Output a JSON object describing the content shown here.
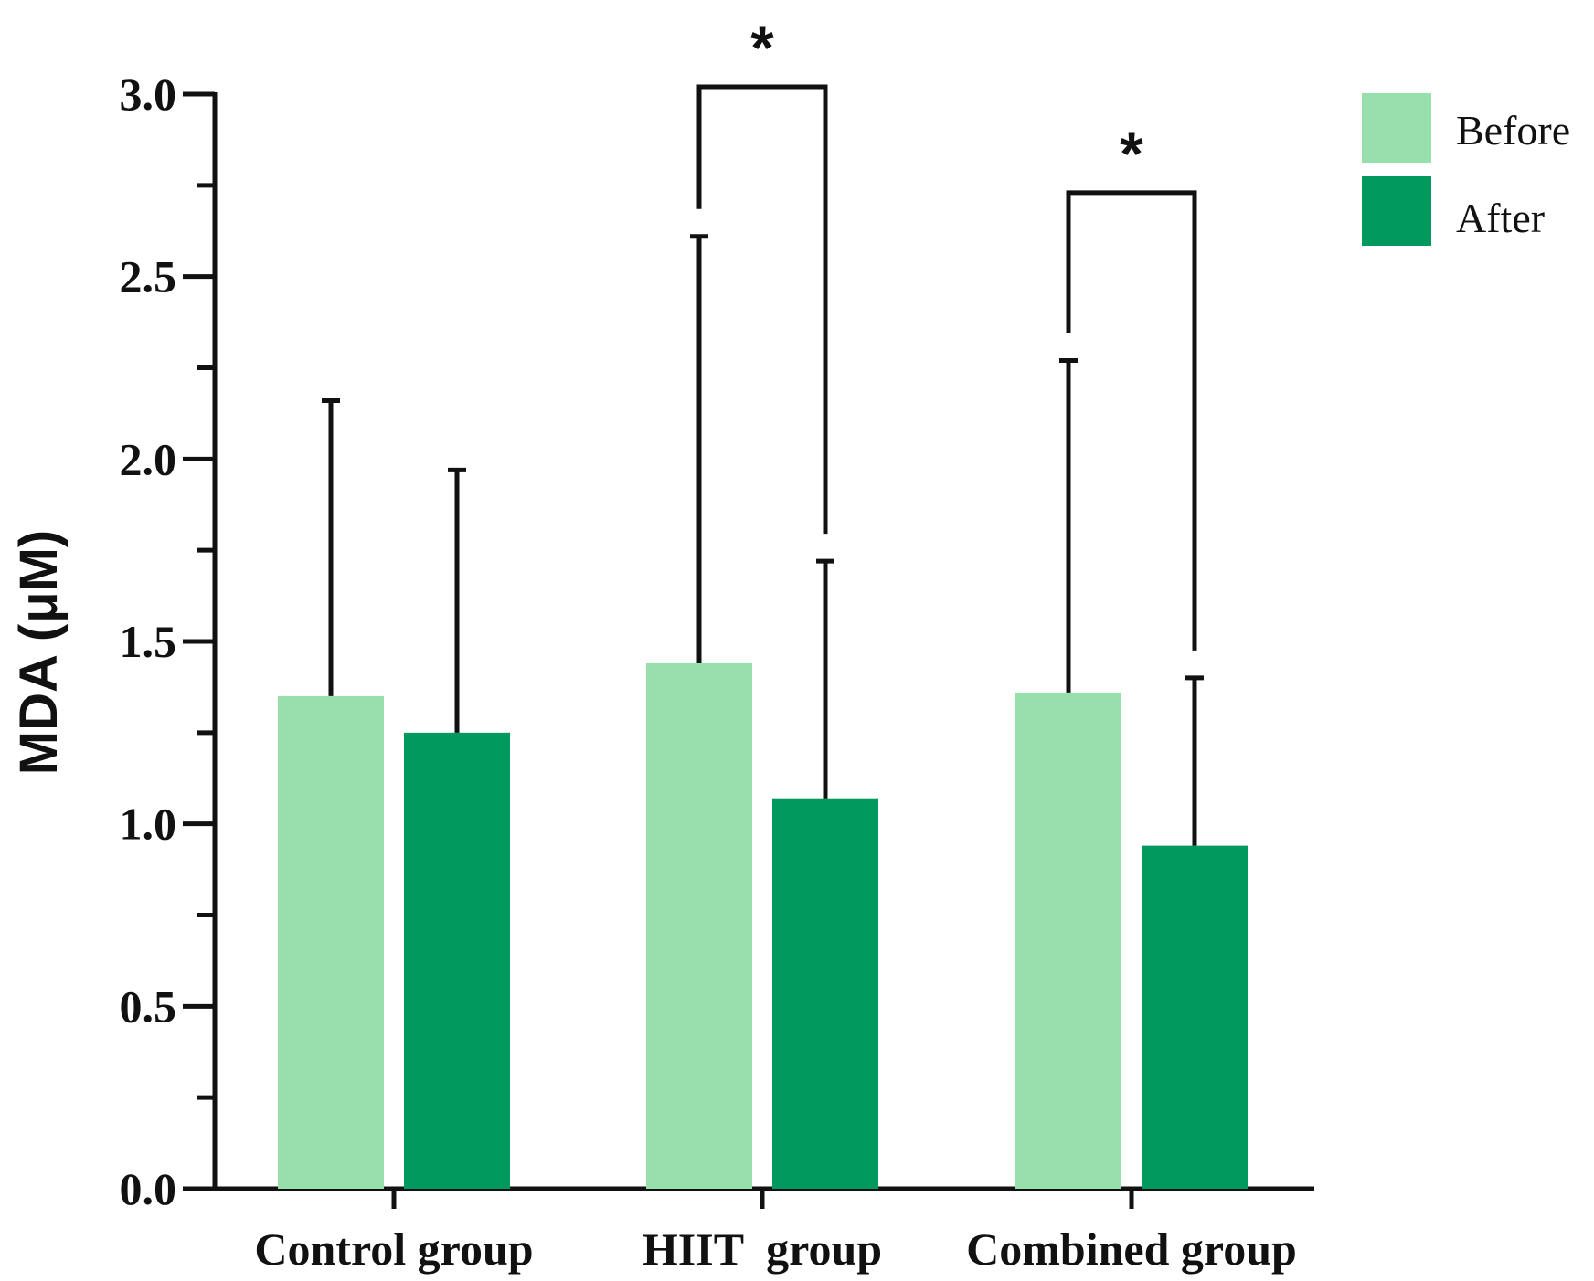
{
  "chart_data": {
    "type": "bar",
    "title": "",
    "xlabel": "",
    "ylabel": "MDA (μM)",
    "categories": [
      "Control group",
      "HIIT  group",
      "Combined group"
    ],
    "ylim": [
      0,
      3.0
    ],
    "yticks": [
      "0.0",
      "0.5",
      "1.0",
      "1.5",
      "2.0",
      "2.5",
      "3.0"
    ],
    "ytick_values": [
      0,
      0.5,
      1.0,
      1.5,
      2.0,
      2.5,
      3.0
    ],
    "grid": false,
    "legend_position": "top-right",
    "series": [
      {
        "name": "Before",
        "color": "#97dfab",
        "values": [
          1.35,
          1.44,
          1.36
        ],
        "error_upper": [
          2.16,
          2.61,
          2.27
        ]
      },
      {
        "name": "After",
        "color": "#02995e",
        "values": [
          1.25,
          1.07,
          0.94
        ],
        "error_upper": [
          1.97,
          1.72,
          1.4
        ]
      }
    ],
    "significance": [
      {
        "category_index": 1,
        "label": "*",
        "bracket_level": 3.02
      },
      {
        "category_index": 2,
        "label": "*",
        "bracket_level": 2.73
      }
    ]
  }
}
